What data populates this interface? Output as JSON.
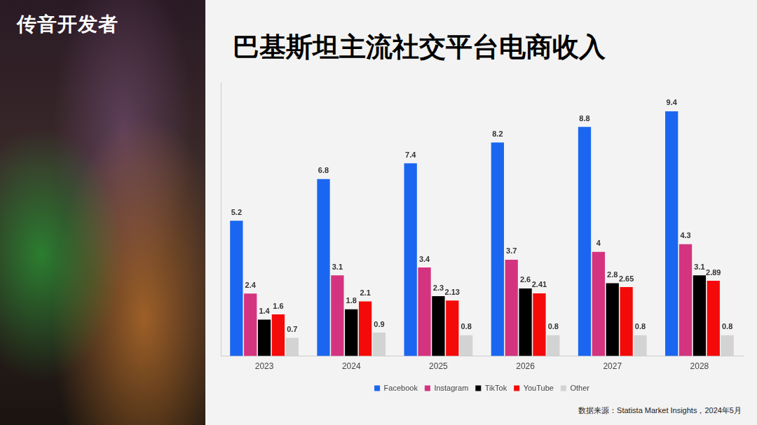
{
  "header": {
    "brand": "传音开发者"
  },
  "source": "数据来源：Statista Market Insights，2024年5月",
  "chart_data": {
    "type": "bar",
    "title": "巴基斯坦主流社交平台电商收入",
    "categories": [
      "2023",
      "2024",
      "2025",
      "2026",
      "2027",
      "2028"
    ],
    "series": [
      {
        "name": "Facebook",
        "color": "#1a66f0",
        "values": [
          5.2,
          6.8,
          7.4,
          8.2,
          8.8,
          9.4
        ]
      },
      {
        "name": "Instagram",
        "color": "#d4337f",
        "values": [
          2.4,
          3.1,
          3.4,
          3.7,
          4,
          4.3
        ]
      },
      {
        "name": "TikTok",
        "color": "#000000",
        "values": [
          1.4,
          1.8,
          2.3,
          2.6,
          2.8,
          3.1
        ]
      },
      {
        "name": "YouTube",
        "color": "#f50a0a",
        "values": [
          1.6,
          2.1,
          2.13,
          2.41,
          2.65,
          2.89
        ]
      },
      {
        "name": "Other",
        "color": "#d3d3d3",
        "values": [
          0.7,
          0.9,
          0.8,
          0.8,
          0.8,
          0.8
        ]
      }
    ],
    "ylim": [
      0,
      10.5
    ],
    "yticks": [],
    "grid": false,
    "legend": "bottom",
    "data_labels": true,
    "tick_labels": "x"
  }
}
